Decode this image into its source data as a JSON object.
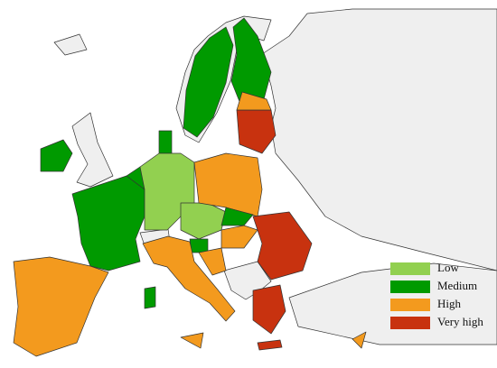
{
  "legend": {
    "items": [
      {
        "label": "Low",
        "color": "#92d050"
      },
      {
        "label": "Medium",
        "color": "#009a00"
      },
      {
        "label": "High",
        "color": "#f39a1e"
      },
      {
        "label": "Very high",
        "color": "#c8320f"
      }
    ]
  }
}
